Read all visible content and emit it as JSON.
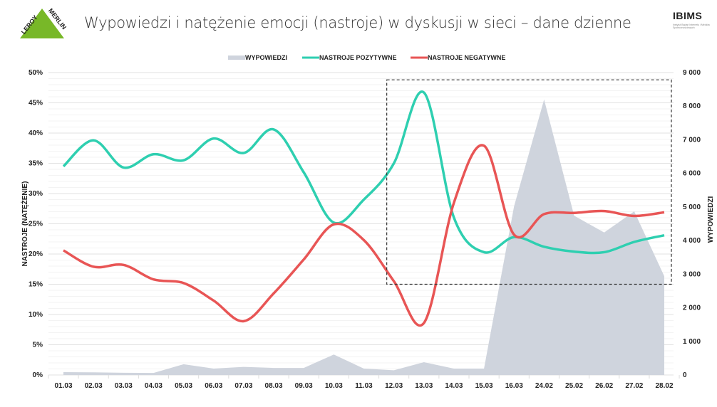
{
  "header": {
    "title": "Wypowiedzi i natężenie emocji (nastroje) w dyskusji w sieci – dane dzienne",
    "logo_left": "LEROY MERLIN",
    "logo_right": "IBIMS",
    "logo_right_sub": "Instytut Badań Internetu i Mediów Społecznościowych"
  },
  "colors": {
    "area": "#cfd4dd",
    "positive": "#2ecfb0",
    "negative": "#e85555",
    "logo_green": "#78b828"
  },
  "chart_data": {
    "type": "line",
    "title": "",
    "xlabel": "",
    "ylabel": "NASTROJE (NATĘŻENIE)",
    "y2label": "WYPOWIEDZI",
    "ylim": [
      0,
      50
    ],
    "y2lim": [
      0,
      9000
    ],
    "yticks": [
      "0%",
      "5%",
      "10%",
      "15%",
      "20%",
      "25%",
      "30%",
      "35%",
      "40%",
      "45%",
      "50%"
    ],
    "y2ticks": [
      "0",
      "1 000",
      "2 000",
      "3 000",
      "4 000",
      "5 000",
      "6 000",
      "7 000",
      "8 000",
      "9 000"
    ],
    "grid": true,
    "legend_position": "top",
    "categories": [
      "01.03",
      "02.03",
      "03.03",
      "04.03",
      "05.03",
      "06.03",
      "07.03",
      "08.03",
      "09.03",
      "10.03",
      "11.03",
      "12.03",
      "13.03",
      "14.03",
      "15.03",
      "16.03",
      "24.02",
      "25.02",
      "26.02",
      "27.02",
      "28.02"
    ],
    "series": [
      {
        "name": "WYPOWIEDZI",
        "type": "area",
        "axis": "right",
        "values": [
          85,
          80,
          65,
          60,
          320,
          190,
          240,
          210,
          210,
          610,
          190,
          140,
          380,
          190,
          190,
          5020,
          8200,
          4740,
          4240,
          4870,
          2940
        ]
      },
      {
        "name": "NASTROJE POZYTYWNE",
        "type": "line",
        "axis": "left",
        "values": [
          34.5,
          38.8,
          34.3,
          36.5,
          35.5,
          39.1,
          36.7,
          40.6,
          33.5,
          25.2,
          29.0,
          35.0,
          46.7,
          26.0,
          20.3,
          22.8,
          21.2,
          20.4,
          20.3,
          22.0,
          23.1
        ]
      },
      {
        "name": "NASTROJE NEGATYWNE",
        "type": "line",
        "axis": "left",
        "values": [
          20.6,
          17.9,
          18.2,
          15.8,
          15.2,
          12.3,
          8.9,
          13.5,
          19.1,
          24.9,
          22.3,
          15.5,
          8.6,
          28.5,
          37.9,
          23.2,
          26.6,
          26.8,
          27.1,
          26.3,
          26.9
        ]
      }
    ],
    "annotation": {
      "type": "dashed-box",
      "x_from": "12.03",
      "x_to": "28.02",
      "y_from": 15,
      "y_to": 48.8
    }
  }
}
